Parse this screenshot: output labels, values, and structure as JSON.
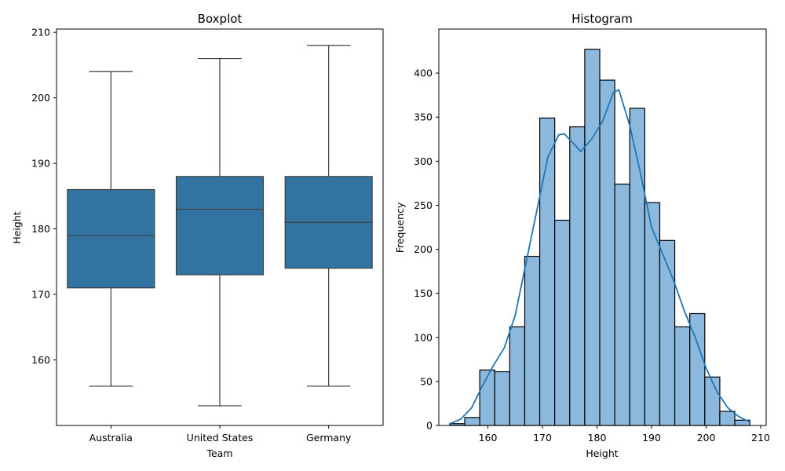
{
  "chart_data": [
    {
      "type": "boxplot",
      "title": "Boxplot",
      "xlabel": "Team",
      "ylabel": "Height",
      "ylim": [
        150,
        210.5
      ],
      "yticks": [
        160,
        170,
        180,
        190,
        200,
        210
      ],
      "color": "#3274a1",
      "categories": [
        "Australia",
        "United States",
        "Germany"
      ],
      "boxes": [
        {
          "category": "Australia",
          "whisker_low": 156,
          "q1": 171,
          "median": 179,
          "q3": 186,
          "whisker_high": 204
        },
        {
          "category": "United States",
          "whisker_low": 153,
          "q1": 173,
          "median": 183,
          "q3": 188,
          "whisker_high": 206
        },
        {
          "category": "Germany",
          "whisker_low": 156,
          "q1": 174,
          "median": 181,
          "q3": 188,
          "whisker_high": 208
        }
      ]
    },
    {
      "type": "histogram",
      "title": "Histogram",
      "xlabel": "Height",
      "ylabel": "Frequency",
      "xlim": [
        151,
        211
      ],
      "ylim": [
        0,
        450
      ],
      "xticks": [
        160,
        170,
        180,
        190,
        200,
        210
      ],
      "yticks": [
        0,
        50,
        100,
        150,
        200,
        250,
        300,
        350,
        400
      ],
      "bar_color": "#8bb8dc",
      "kde_color": "#1f77b4",
      "bins": {
        "edges": [
          153,
          155.75,
          158.5,
          161.25,
          164,
          166.75,
          169.5,
          172.25,
          175,
          177.75,
          180.5,
          183.25,
          186,
          188.75,
          191.5,
          194.25,
          197,
          199.75,
          202.5,
          205.25,
          208
        ],
        "counts": [
          2,
          9,
          63,
          61,
          112,
          192,
          349,
          233,
          339,
          427,
          392,
          274,
          360,
          253,
          210,
          112,
          127,
          55,
          16,
          6
        ]
      },
      "kde": {
        "x": [
          153,
          155,
          157,
          159,
          161,
          163,
          165,
          167,
          169,
          171,
          173,
          174,
          176,
          177,
          179,
          181,
          183,
          184,
          186,
          188,
          190,
          192,
          194,
          196,
          198,
          200,
          202,
          204,
          206,
          208
        ],
        "y": [
          2,
          7,
          20,
          45,
          68,
          88,
          125,
          185,
          245,
          305,
          330,
          331,
          318,
          311,
          325,
          345,
          378,
          381,
          340,
          285,
          225,
          195,
          165,
          130,
          100,
          65,
          38,
          20,
          10,
          4
        ]
      }
    }
  ]
}
